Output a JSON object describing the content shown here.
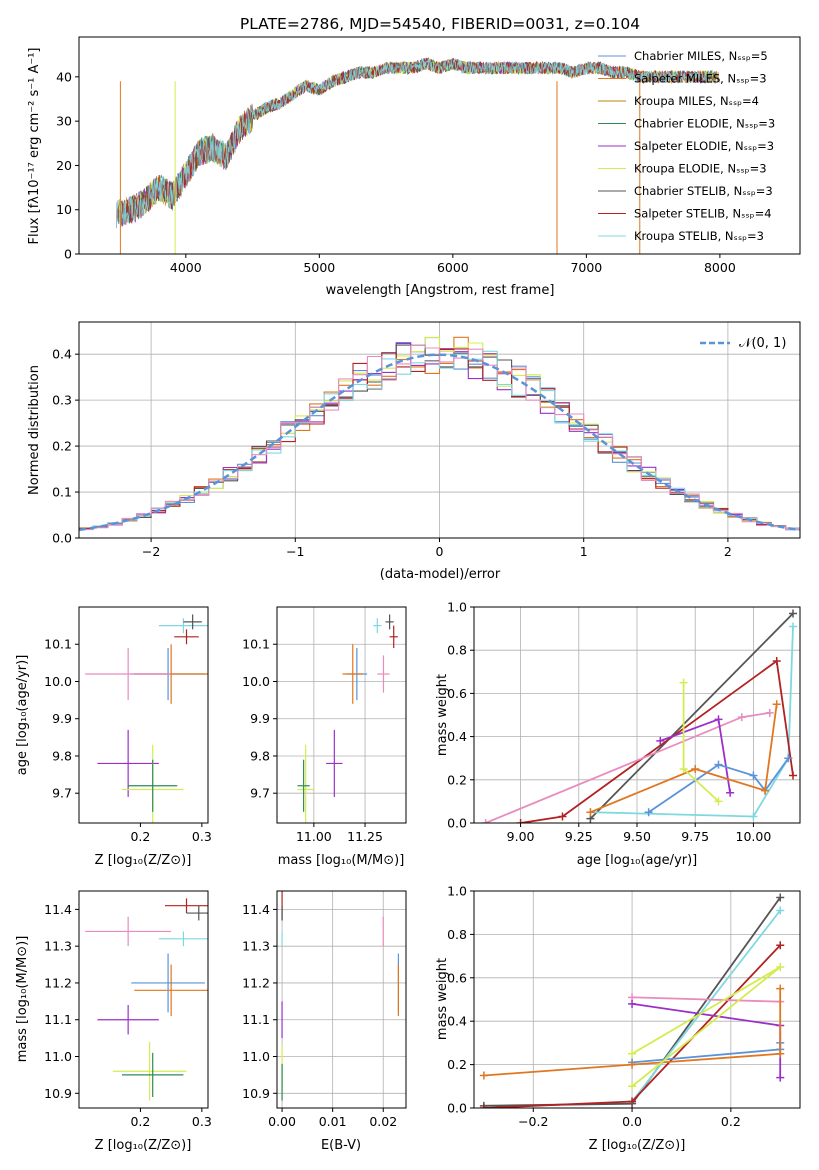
{
  "chart_data": [
    {
      "id": "spectrum",
      "type": "line",
      "title": "PLATE=2786, MJD=54540, FIBERID=0031, z=0.104",
      "xlabel": "wavelength [Angstrom, rest frame]",
      "ylabel": "Flux [fλ10⁻¹⁷ erg cm⁻² s⁻¹ A⁻¹]",
      "xlim": [
        3200,
        8600
      ],
      "ylim": [
        0,
        49
      ],
      "xticks": [
        4000,
        5000,
        6000,
        7000,
        8000
      ],
      "yticks": [
        0,
        10,
        20,
        30,
        40
      ],
      "grid": false,
      "legend_position": "right",
      "x": [
        3480,
        3600,
        3700,
        3800,
        3900,
        4000,
        4100,
        4200,
        4300,
        4400,
        4500,
        4600,
        4700,
        4800,
        4900,
        5000,
        5100,
        5200,
        5300,
        5400,
        5500,
        5600,
        5700,
        5800,
        5900,
        6000,
        6100,
        6200,
        6300,
        6400,
        6500,
        6600,
        6700,
        6800,
        6900,
        7000,
        7100,
        7200,
        7300,
        7400
      ],
      "y": [
        9,
        10,
        12,
        15,
        13,
        18,
        23,
        24,
        22,
        28,
        31,
        33,
        34,
        36,
        38,
        37,
        39,
        40,
        41,
        41,
        42,
        42,
        42,
        43,
        42,
        43,
        42,
        42,
        42,
        42,
        42,
        42,
        42,
        42,
        41,
        42,
        42,
        41,
        41,
        40
      ],
      "series": [
        {
          "name": "Chabrier MILES, Nₛₛₚ=5",
          "color": "#5a93da"
        },
        {
          "name": "Salpeter MILES, Nₛₛₚ=3",
          "color": "#e0771f"
        },
        {
          "name": "Kroupa MILES, Nₛₛₚ=4",
          "color": "#b8860b"
        },
        {
          "name": "Chabrier ELODIE, Nₛₛₚ=3",
          "color": "#2e8b57"
        },
        {
          "name": "Salpeter ELODIE, Nₛₛₚ=3",
          "color": "#9b30c8"
        },
        {
          "name": "Kroupa ELODIE, Nₛₛₚ=3",
          "color": "#d4ec50"
        },
        {
          "name": "Chabrier STELIB, Nₛₛₚ=3",
          "color": "#555555"
        },
        {
          "name": "Salpeter STELIB, Nₛₛₚ=4",
          "color": "#b22222"
        },
        {
          "name": "Kroupa STELIB, Nₛₛₚ=3",
          "color": "#7fd8e0"
        }
      ]
    },
    {
      "id": "residuals",
      "type": "line",
      "xlabel": "(data-model)/error",
      "ylabel": "Normed distribution",
      "xlim": [
        -2.5,
        2.5
      ],
      "ylim": [
        0,
        0.47
      ],
      "xticks": [
        -2,
        -1,
        0,
        1,
        2
      ],
      "yticks": [
        0.0,
        0.1,
        0.2,
        0.3,
        0.4
      ],
      "grid": true,
      "legend": "𝒩(0, 1)",
      "legend_position": "top-right",
      "bin_width": 0.1,
      "series_colors": [
        "#5a93da",
        "#e0771f",
        "#9b30c8",
        "#d4ec50",
        "#555555",
        "#b22222",
        "#7fd8e0",
        "#e88cbf"
      ]
    },
    {
      "id": "age_vs_Z",
      "type": "scatter",
      "xlabel": "Z [log₁₀(Z/Z⊙)]",
      "ylabel": "age  [log₁₀(age/yr)]",
      "xlim": [
        0.1,
        0.31
      ],
      "ylim": [
        9.62,
        10.2
      ],
      "xticks": [
        0.2,
        0.3
      ],
      "yticks": [
        9.7,
        9.8,
        9.9,
        10.0,
        10.1
      ],
      "points": [
        {
          "x": 0.27,
          "y": 10.15,
          "xerr": 0.04,
          "yerr": 0.02,
          "color": "#7fd8e0"
        },
        {
          "x": 0.285,
          "y": 10.16,
          "xerr": 0.015,
          "yerr": 0.02,
          "color": "#555555"
        },
        {
          "x": 0.275,
          "y": 10.12,
          "xerr": 0.02,
          "yerr": 0.02,
          "color": "#b22222"
        },
        {
          "x": 0.245,
          "y": 10.02,
          "xerr": 0.06,
          "yerr": 0.07,
          "color": "#5a93da"
        },
        {
          "x": 0.25,
          "y": 10.02,
          "xerr": 0.06,
          "yerr": 0.08,
          "color": "#e0771f"
        },
        {
          "x": 0.18,
          "y": 10.02,
          "xerr": 0.07,
          "yerr": 0.07,
          "color": "#e88cbf"
        },
        {
          "x": 0.18,
          "y": 9.78,
          "xerr": 0.05,
          "yerr": 0.09,
          "color": "#9b30c8"
        },
        {
          "x": 0.22,
          "y": 9.71,
          "xerr": 0.05,
          "yerr": 0.12,
          "color": "#d4ec50"
        },
        {
          "x": 0.22,
          "y": 9.72,
          "xerr": 0.04,
          "yerr": 0.07,
          "color": "#2e8b57"
        }
      ]
    },
    {
      "id": "age_vs_mass",
      "type": "scatter",
      "xlabel": "mass [log₁₀(M/M⊙)]",
      "xlim": [
        10.82,
        11.45
      ],
      "ylim": [
        9.62,
        10.2
      ],
      "xticks": [
        11.0,
        11.25
      ],
      "yticks": [
        9.7,
        9.8,
        9.9,
        10.0,
        10.1
      ],
      "points": [
        {
          "x": 11.31,
          "y": 10.15,
          "xerr": 0.02,
          "yerr": 0.02,
          "color": "#7fd8e0"
        },
        {
          "x": 11.37,
          "y": 10.16,
          "xerr": 0.02,
          "yerr": 0.02,
          "color": "#555555"
        },
        {
          "x": 11.39,
          "y": 10.12,
          "xerr": 0.02,
          "yerr": 0.03,
          "color": "#b22222"
        },
        {
          "x": 11.21,
          "y": 10.02,
          "xerr": 0.05,
          "yerr": 0.07,
          "color": "#5a93da"
        },
        {
          "x": 11.19,
          "y": 10.02,
          "xerr": 0.05,
          "yerr": 0.08,
          "color": "#e0771f"
        },
        {
          "x": 11.34,
          "y": 10.02,
          "xerr": 0.03,
          "yerr": 0.05,
          "color": "#e88cbf"
        },
        {
          "x": 11.1,
          "y": 9.78,
          "xerr": 0.04,
          "yerr": 0.09,
          "color": "#9b30c8"
        },
        {
          "x": 10.96,
          "y": 9.71,
          "xerr": 0.04,
          "yerr": 0.12,
          "color": "#d4ec50"
        },
        {
          "x": 10.95,
          "y": 9.72,
          "xerr": 0.03,
          "yerr": 0.07,
          "color": "#2e8b57"
        }
      ]
    },
    {
      "id": "massweight_vs_age",
      "type": "line",
      "xlabel": "age  [log₁₀(age/yr)]",
      "ylabel": "mass weight",
      "xlim": [
        8.8,
        10.2
      ],
      "ylim": [
        0,
        1
      ],
      "xticks": [
        9.0,
        9.25,
        9.5,
        9.75,
        10.0
      ],
      "yticks": [
        0.0,
        0.2,
        0.4,
        0.6,
        0.8,
        1.0
      ],
      "grid": true,
      "series": [
        {
          "color": "#555555",
          "x": [
            9.3,
            10.17
          ],
          "y": [
            0.02,
            0.97
          ]
        },
        {
          "color": "#7fd8e0",
          "x": [
            9.3,
            10.0,
            10.15,
            10.17
          ],
          "y": [
            0.05,
            0.03,
            0.3,
            0.91
          ]
        },
        {
          "color": "#b22222",
          "x": [
            9.0,
            9.18,
            10.1,
            10.17
          ],
          "y": [
            0.0,
            0.03,
            0.75,
            0.22
          ]
        },
        {
          "color": "#e88cbf",
          "x": [
            8.85,
            9.95,
            10.07
          ],
          "y": [
            0.0,
            0.49,
            0.51
          ]
        },
        {
          "color": "#9b30c8",
          "x": [
            9.6,
            9.85,
            9.9
          ],
          "y": [
            0.38,
            0.48,
            0.14
          ]
        },
        {
          "color": "#5a93da",
          "x": [
            9.55,
            9.85,
            10.0,
            10.05,
            10.15
          ],
          "y": [
            0.05,
            0.27,
            0.22,
            0.15,
            0.3
          ]
        },
        {
          "color": "#e0771f",
          "x": [
            9.3,
            9.75,
            10.05,
            10.1
          ],
          "y": [
            0.05,
            0.25,
            0.15,
            0.55
          ]
        },
        {
          "color": "#d4ec50",
          "x": [
            9.7,
            9.7,
            9.85
          ],
          "y": [
            0.65,
            0.25,
            0.1
          ]
        }
      ]
    },
    {
      "id": "mass_vs_Z",
      "type": "scatter",
      "xlabel": "Z [log₁₀(Z/Z⊙)]",
      "ylabel": "mass [log₁₀(M/M⊙)]",
      "xlim": [
        0.1,
        0.31
      ],
      "ylim": [
        10.86,
        11.45
      ],
      "xticks": [
        0.2,
        0.3
      ],
      "yticks": [
        10.9,
        11.0,
        11.1,
        11.2,
        11.3,
        11.4
      ],
      "points": [
        {
          "x": 0.275,
          "y": 11.41,
          "xerr": 0.035,
          "yerr": 0.02,
          "color": "#b22222"
        },
        {
          "x": 0.295,
          "y": 11.39,
          "xerr": 0.02,
          "yerr": 0.02,
          "color": "#555555"
        },
        {
          "x": 0.18,
          "y": 11.34,
          "xerr": 0.07,
          "yerr": 0.04,
          "color": "#e88cbf"
        },
        {
          "x": 0.27,
          "y": 11.32,
          "xerr": 0.04,
          "yerr": 0.02,
          "color": "#7fd8e0"
        },
        {
          "x": 0.245,
          "y": 11.2,
          "xerr": 0.06,
          "yerr": 0.08,
          "color": "#5a93da"
        },
        {
          "x": 0.25,
          "y": 11.18,
          "xerr": 0.06,
          "yerr": 0.07,
          "color": "#e0771f"
        },
        {
          "x": 0.18,
          "y": 11.1,
          "xerr": 0.05,
          "yerr": 0.04,
          "color": "#9b30c8"
        },
        {
          "x": 0.215,
          "y": 10.96,
          "xerr": 0.06,
          "yerr": 0.08,
          "color": "#d4ec50"
        },
        {
          "x": 0.22,
          "y": 10.95,
          "xerr": 0.05,
          "yerr": 0.06,
          "color": "#2e8b57"
        }
      ]
    },
    {
      "id": "mass_vs_ebv",
      "type": "scatter",
      "xlabel": "E(B-V)",
      "xlim": [
        -0.001,
        0.0245
      ],
      "ylim": [
        10.86,
        11.45
      ],
      "xticks": [
        0.0,
        0.01,
        0.02
      ],
      "yticks": [
        10.9,
        11.0,
        11.1,
        11.2,
        11.3,
        11.4
      ],
      "points": [
        {
          "x": 0.0,
          "y": 11.41,
          "xerr": 0,
          "yerr": 0.04,
          "color": "#b22222"
        },
        {
          "x": 0.0,
          "y": 11.39,
          "xerr": 0,
          "yerr": 0.02,
          "color": "#555555"
        },
        {
          "x": 0.0,
          "y": 11.32,
          "xerr": 0,
          "yerr": 0.02,
          "color": "#7fd8e0"
        },
        {
          "x": 0.0,
          "y": 11.1,
          "xerr": 0,
          "yerr": 0.05,
          "color": "#9b30c8"
        },
        {
          "x": 0.0,
          "y": 10.96,
          "xerr": 0,
          "yerr": 0.07,
          "color": "#d4ec50"
        },
        {
          "x": 0.0,
          "y": 10.93,
          "xerr": 0,
          "yerr": 0.05,
          "color": "#2e8b57"
        },
        {
          "x": 0.02,
          "y": 11.34,
          "xerr": 0,
          "yerr": 0.04,
          "color": "#e88cbf"
        },
        {
          "x": 0.023,
          "y": 11.2,
          "xerr": 0,
          "yerr": 0.08,
          "color": "#5a93da"
        },
        {
          "x": 0.023,
          "y": 11.18,
          "xerr": 0,
          "yerr": 0.07,
          "color": "#e0771f"
        }
      ]
    },
    {
      "id": "massweight_vs_Z",
      "type": "line",
      "xlabel": "Z [log₁₀(Z/Z⊙)]",
      "ylabel": "mass weight",
      "xlim": [
        -0.32,
        0.34
      ],
      "ylim": [
        0,
        1
      ],
      "xticks": [
        -0.2,
        0.0,
        0.2
      ],
      "yticks": [
        0.0,
        0.2,
        0.4,
        0.6,
        0.8,
        1.0
      ],
      "grid": true,
      "series": [
        {
          "color": "#555555",
          "x": [
            -0.3,
            0.0,
            0.3
          ],
          "y": [
            0.01,
            0.02,
            0.97
          ]
        },
        {
          "color": "#7fd8e0",
          "x": [
            0.0,
            0.3
          ],
          "y": [
            0.03,
            0.91
          ]
        },
        {
          "color": "#b22222",
          "x": [
            -0.3,
            0.0,
            0.3
          ],
          "y": [
            0.0,
            0.03,
            0.75
          ]
        },
        {
          "color": "#e88cbf",
          "x": [
            0.0,
            0.3
          ],
          "y": [
            0.51,
            0.49
          ]
        },
        {
          "color": "#9b30c8",
          "x": [
            0.0,
            0.3,
            0.3
          ],
          "y": [
            0.48,
            0.38,
            0.14
          ]
        },
        {
          "color": "#5a93da",
          "x": [
            0.0,
            0.3,
            0.3
          ],
          "y": [
            0.21,
            0.27,
            0.3
          ]
        },
        {
          "color": "#e0771f",
          "x": [
            -0.3,
            0.0,
            0.3,
            0.3
          ],
          "y": [
            0.15,
            0.2,
            0.25,
            0.55
          ]
        },
        {
          "color": "#d4ec50",
          "x": [
            0.0,
            0.3,
            0.0
          ],
          "y": [
            0.1,
            0.65,
            0.25
          ]
        }
      ]
    }
  ]
}
